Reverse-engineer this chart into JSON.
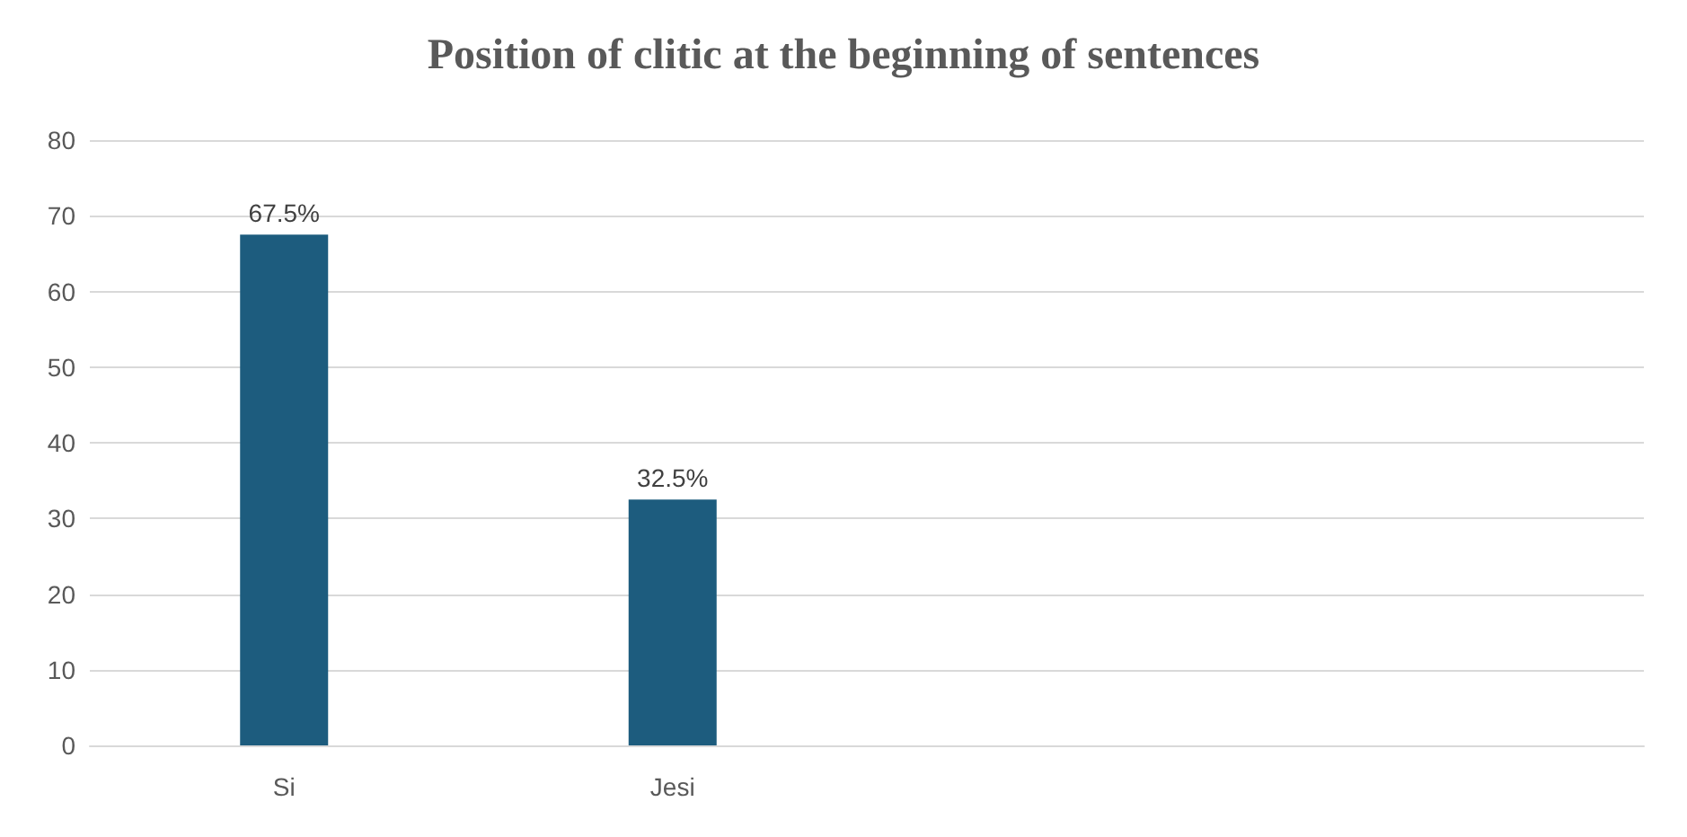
{
  "chart_data": {
    "type": "bar",
    "title": "Position of clitic at the beginning of sentences",
    "categories": [
      "Si",
      "Jesi",
      null,
      null
    ],
    "values": [
      67.5,
      32.5,
      null,
      null
    ],
    "value_labels": [
      "67.5%",
      "32.5%",
      null,
      null
    ],
    "color": "#1d5c7e",
    "ylim": [
      0,
      80
    ],
    "yticks": [
      0,
      10,
      20,
      30,
      40,
      50,
      60,
      70,
      80
    ],
    "grid": "y"
  }
}
